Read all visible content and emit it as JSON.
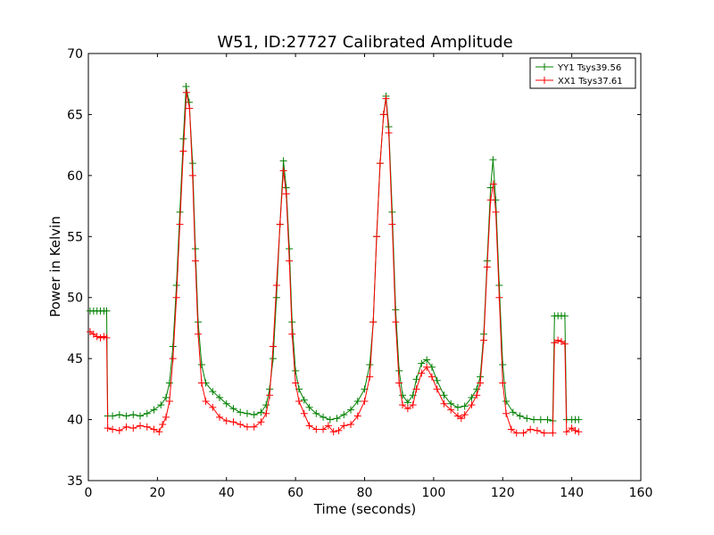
{
  "chart_data": {
    "type": "line",
    "title": "W51, ID:27727 Calibrated Amplitude",
    "xlabel": "Time (seconds)",
    "ylabel": "Power in Kelvin",
    "xlim": [
      0,
      160
    ],
    "ylim": [
      35,
      70
    ],
    "xticks": [
      0,
      20,
      40,
      60,
      80,
      100,
      120,
      140,
      160
    ],
    "yticks": [
      35,
      40,
      45,
      50,
      55,
      60,
      65,
      70
    ],
    "grid": false,
    "legend": "top-right",
    "marker": "+",
    "series": [
      {
        "name": "YY1 Tsys39.56",
        "color": "#008000",
        "points": [
          [
            0.5,
            48.9
          ],
          [
            1.5,
            48.9
          ],
          [
            2.5,
            48.9
          ],
          [
            3.5,
            48.9
          ],
          [
            4.5,
            48.9
          ],
          [
            5.3,
            48.9
          ],
          [
            5.6,
            40.3
          ],
          [
            7,
            40.3
          ],
          [
            9,
            40.4
          ],
          [
            11,
            40.3
          ],
          [
            13,
            40.4
          ],
          [
            15,
            40.3
          ],
          [
            17,
            40.5
          ],
          [
            19,
            40.8
          ],
          [
            21,
            41.2
          ],
          [
            22.5,
            41.8
          ],
          [
            23.5,
            43
          ],
          [
            24.5,
            46
          ],
          [
            25.5,
            51
          ],
          [
            26.5,
            57
          ],
          [
            27.5,
            63
          ],
          [
            28.3,
            67.3
          ],
          [
            29.2,
            66
          ],
          [
            30.2,
            61
          ],
          [
            31,
            54
          ],
          [
            31.8,
            48
          ],
          [
            32.8,
            44.5
          ],
          [
            34,
            43
          ],
          [
            36,
            42.3
          ],
          [
            38,
            41.8
          ],
          [
            40,
            41.3
          ],
          [
            42,
            40.9
          ],
          [
            44,
            40.6
          ],
          [
            46,
            40.5
          ],
          [
            48,
            40.4
          ],
          [
            50,
            40.6
          ],
          [
            51.5,
            41.2
          ],
          [
            52.5,
            42.5
          ],
          [
            53.5,
            45
          ],
          [
            54.5,
            50
          ],
          [
            55.5,
            56
          ],
          [
            56.5,
            61.2
          ],
          [
            57.3,
            59
          ],
          [
            58.2,
            54
          ],
          [
            59,
            48
          ],
          [
            60,
            44
          ],
          [
            61,
            42.5
          ],
          [
            62.5,
            41.6
          ],
          [
            64,
            41
          ],
          [
            66,
            40.5
          ],
          [
            68,
            40.2
          ],
          [
            70,
            40
          ],
          [
            72,
            40.1
          ],
          [
            74,
            40.4
          ],
          [
            76,
            40.8
          ],
          [
            78,
            41.5
          ],
          [
            80,
            42.5
          ],
          [
            81.5,
            44.5
          ],
          [
            82.5,
            48
          ],
          [
            83.5,
            55
          ],
          [
            84.5,
            61
          ],
          [
            85.5,
            65
          ],
          [
            86.2,
            66.5
          ],
          [
            87,
            64
          ],
          [
            88,
            57
          ],
          [
            89,
            49
          ],
          [
            90,
            44
          ],
          [
            91,
            42
          ],
          [
            92.5,
            41.4
          ],
          [
            94,
            42
          ],
          [
            95,
            43.3
          ],
          [
            96.5,
            44.6
          ],
          [
            98,
            44.9
          ],
          [
            99.5,
            44.3
          ],
          [
            101,
            43.2
          ],
          [
            103,
            42
          ],
          [
            105,
            41.3
          ],
          [
            107,
            41
          ],
          [
            109,
            41.1
          ],
          [
            111,
            41.8
          ],
          [
            112.5,
            42.5
          ],
          [
            113.5,
            43.5
          ],
          [
            114.5,
            47
          ],
          [
            115.5,
            53
          ],
          [
            116.5,
            59
          ],
          [
            117.2,
            61.3
          ],
          [
            118,
            58
          ],
          [
            119,
            51
          ],
          [
            120,
            44.5
          ],
          [
            121,
            41.5
          ],
          [
            123,
            40.6
          ],
          [
            125,
            40.3
          ],
          [
            127,
            40.1
          ],
          [
            129,
            40
          ],
          [
            131,
            40
          ],
          [
            133,
            40
          ],
          [
            134.5,
            39.9
          ],
          [
            135,
            48.5
          ],
          [
            136,
            48.5
          ],
          [
            137,
            48.5
          ],
          [
            138,
            48.5
          ],
          [
            138.5,
            40
          ],
          [
            140,
            40
          ],
          [
            141,
            40
          ],
          [
            142,
            40
          ]
        ]
      },
      {
        "name": "XX1 Tsys37.61",
        "color": "#ff0000",
        "points": [
          [
            0.5,
            47.2
          ],
          [
            1.5,
            47
          ],
          [
            2.5,
            46.8
          ],
          [
            3.5,
            46.7
          ],
          [
            4.5,
            46.8
          ],
          [
            5.3,
            46.7
          ],
          [
            5.6,
            39.3
          ],
          [
            7,
            39.2
          ],
          [
            9,
            39.1
          ],
          [
            11,
            39.4
          ],
          [
            13,
            39.3
          ],
          [
            15,
            39.5
          ],
          [
            17,
            39.4
          ],
          [
            19,
            39.2
          ],
          [
            20.5,
            39
          ],
          [
            21.5,
            39.6
          ],
          [
            22.5,
            40.2
          ],
          [
            23.5,
            41.5
          ],
          [
            24.5,
            45
          ],
          [
            25.5,
            50
          ],
          [
            26.5,
            56
          ],
          [
            27.5,
            62
          ],
          [
            28.4,
            66.8
          ],
          [
            29.3,
            65.5
          ],
          [
            30.2,
            60
          ],
          [
            31,
            53
          ],
          [
            31.8,
            47
          ],
          [
            32.8,
            43
          ],
          [
            34,
            41.5
          ],
          [
            36,
            41
          ],
          [
            38,
            40.2
          ],
          [
            40,
            39.9
          ],
          [
            42,
            39.8
          ],
          [
            44,
            39.6
          ],
          [
            46,
            39.4
          ],
          [
            48,
            39.4
          ],
          [
            50,
            39.8
          ],
          [
            51.5,
            40.5
          ],
          [
            52.5,
            42
          ],
          [
            53.5,
            46
          ],
          [
            54.5,
            51
          ],
          [
            55.5,
            56
          ],
          [
            56.5,
            60.4
          ],
          [
            57.3,
            58.5
          ],
          [
            58.2,
            53
          ],
          [
            59,
            47
          ],
          [
            60,
            43
          ],
          [
            61,
            41.5
          ],
          [
            62.5,
            40.5
          ],
          [
            64,
            39.5
          ],
          [
            66,
            39.2
          ],
          [
            68,
            39.2
          ],
          [
            69.5,
            39.5
          ],
          [
            71,
            39
          ],
          [
            72.5,
            39.1
          ],
          [
            74,
            39.5
          ],
          [
            76,
            39.6
          ],
          [
            78,
            40.3
          ],
          [
            80,
            41.5
          ],
          [
            81.5,
            43.5
          ],
          [
            82.5,
            48
          ],
          [
            83.5,
            55
          ],
          [
            84.5,
            61
          ],
          [
            85.5,
            65
          ],
          [
            86.2,
            66.3
          ],
          [
            87,
            63.5
          ],
          [
            88,
            56
          ],
          [
            89,
            48
          ],
          [
            90,
            43
          ],
          [
            91,
            41.2
          ],
          [
            92.5,
            40.9
          ],
          [
            94,
            41.2
          ],
          [
            95,
            42.5
          ],
          [
            96.5,
            43.8
          ],
          [
            98,
            44.3
          ],
          [
            99.5,
            43.5
          ],
          [
            101,
            42.5
          ],
          [
            103,
            41.3
          ],
          [
            105,
            40.8
          ],
          [
            107,
            40.3
          ],
          [
            108,
            40.1
          ],
          [
            109,
            40.4
          ],
          [
            111,
            41.2
          ],
          [
            112.5,
            42
          ],
          [
            113.5,
            43
          ],
          [
            114.5,
            46.5
          ],
          [
            115.5,
            52.5
          ],
          [
            116.5,
            58
          ],
          [
            117.3,
            59.3
          ],
          [
            118,
            57
          ],
          [
            119,
            50
          ],
          [
            120,
            43
          ],
          [
            121,
            40.5
          ],
          [
            122.5,
            39.2
          ],
          [
            124,
            38.9
          ],
          [
            126,
            38.9
          ],
          [
            128,
            39.2
          ],
          [
            130,
            39.1
          ],
          [
            132,
            38.9
          ],
          [
            134.5,
            38.9
          ],
          [
            135,
            46.3
          ],
          [
            136,
            46.5
          ],
          [
            137,
            46.4
          ],
          [
            138,
            46.2
          ],
          [
            138.5,
            39
          ],
          [
            140,
            39.3
          ],
          [
            141,
            39.1
          ],
          [
            142,
            39
          ]
        ]
      }
    ]
  }
}
